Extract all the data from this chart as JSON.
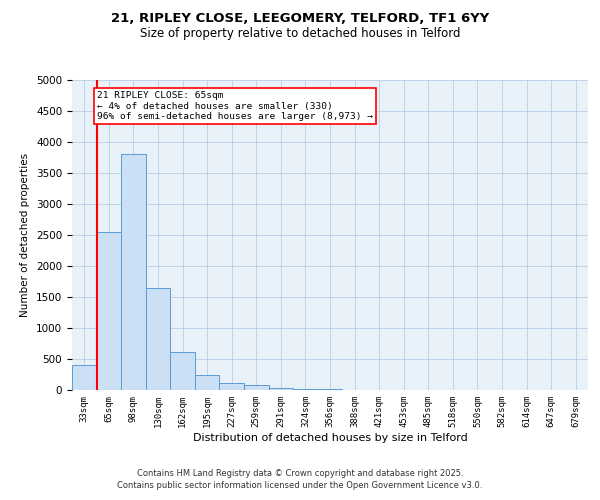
{
  "title1": "21, RIPLEY CLOSE, LEEGOMERY, TELFORD, TF1 6YY",
  "title2": "Size of property relative to detached houses in Telford",
  "xlabel": "Distribution of detached houses by size in Telford",
  "ylabel": "Number of detached properties",
  "categories": [
    "33sqm",
    "65sqm",
    "98sqm",
    "130sqm",
    "162sqm",
    "195sqm",
    "227sqm",
    "259sqm",
    "291sqm",
    "324sqm",
    "356sqm",
    "388sqm",
    "421sqm",
    "453sqm",
    "485sqm",
    "518sqm",
    "550sqm",
    "582sqm",
    "614sqm",
    "647sqm",
    "679sqm"
  ],
  "values": [
    400,
    2550,
    3800,
    1650,
    620,
    240,
    120,
    80,
    40,
    20,
    10,
    8,
    5,
    5,
    3,
    2,
    1,
    1,
    1,
    1,
    1
  ],
  "bar_color": "#cce0f5",
  "bar_edge_color": "#5b9bd5",
  "red_line_index": 1,
  "annotation_line1": "21 RIPLEY CLOSE: 65sqm",
  "annotation_line2": "← 4% of detached houses are smaller (330)",
  "annotation_line3": "96% of semi-detached houses are larger (8,973) →",
  "ylim": [
    0,
    5000
  ],
  "yticks": [
    0,
    500,
    1000,
    1500,
    2000,
    2500,
    3000,
    3500,
    4000,
    4500,
    5000
  ],
  "grid_color": "#b8cfe8",
  "bg_color": "#e8f0f8",
  "footer1": "Contains HM Land Registry data © Crown copyright and database right 2025.",
  "footer2": "Contains public sector information licensed under the Open Government Licence v3.0."
}
